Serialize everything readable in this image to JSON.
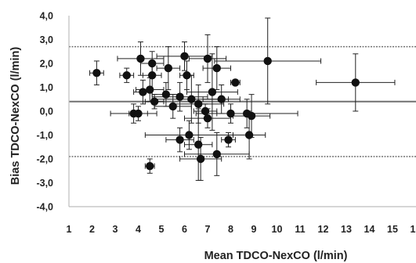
{
  "chart_data": {
    "type": "scatter",
    "title": "",
    "xlabel": "Mean TDCO-NexCO (l/min)",
    "ylabel": "Bias TDCO-NexCO (l/min)",
    "xlim": [
      1,
      16
    ],
    "ylim": [
      -4,
      4
    ],
    "xticks": [
      "1",
      "2",
      "3",
      "4",
      "5",
      "6",
      "7",
      "8",
      "9",
      "10",
      "11",
      "12",
      "13",
      "14",
      "15",
      "16"
    ],
    "yticks": [
      "-4,0",
      "-3,0",
      "-2,0",
      "-1,0",
      "0,0",
      "1,0",
      "2,0",
      "3,0",
      "4,0"
    ],
    "grid": false,
    "reference_lines": {
      "mean_bias": 0.4,
      "upper_limit": 2.7,
      "lower_limit": -1.9
    },
    "points": [
      {
        "x": 2.2,
        "y": 1.6,
        "xerr": 0.3,
        "yerr": 0.5
      },
      {
        "x": 3.5,
        "y": 1.5,
        "xerr": 0.3,
        "yerr": 0.3
      },
      {
        "x": 4.1,
        "y": 2.2,
        "xerr": 1.0,
        "yerr": 0.7
      },
      {
        "x": 4.6,
        "y": 2.0,
        "xerr": 0.5,
        "yerr": 0.5
      },
      {
        "x": 5.3,
        "y": 1.8,
        "xerr": 0.5,
        "yerr": 0.9
      },
      {
        "x": 4.6,
        "y": 1.5,
        "xerr": 0.4,
        "yerr": 0.6
      },
      {
        "x": 6.0,
        "y": 2.3,
        "xerr": 1.2,
        "yerr": 0.6
      },
      {
        "x": 7.0,
        "y": 2.2,
        "xerr": 0.8,
        "yerr": 1.0
      },
      {
        "x": 7.4,
        "y": 1.8,
        "xerr": 0.6,
        "yerr": 0.9
      },
      {
        "x": 6.1,
        "y": 1.5,
        "xerr": 0.3,
        "yerr": 0.6
      },
      {
        "x": 9.6,
        "y": 2.1,
        "xerr": 2.3,
        "yerr": 1.8
      },
      {
        "x": 8.2,
        "y": 1.2,
        "xerr": 0.2,
        "yerr": 0.1
      },
      {
        "x": 13.4,
        "y": 1.2,
        "xerr": 1.7,
        "yerr": 1.2
      },
      {
        "x": 4.5,
        "y": 0.9,
        "xerr": 0.6,
        "yerr": 0.5
      },
      {
        "x": 4.2,
        "y": 0.8,
        "xerr": 0.4,
        "yerr": 0.5
      },
      {
        "x": 5.2,
        "y": 0.7,
        "xerr": 0.6,
        "yerr": 0.5
      },
      {
        "x": 5.8,
        "y": 0.6,
        "xerr": 1.2,
        "yerr": 0.6
      },
      {
        "x": 6.3,
        "y": 0.5,
        "xerr": 1.6,
        "yerr": 1.0
      },
      {
        "x": 6.6,
        "y": 0.3,
        "xerr": 1.1,
        "yerr": 0.8
      },
      {
        "x": 7.2,
        "y": 0.8,
        "xerr": 1.1,
        "yerr": 1.6
      },
      {
        "x": 7.6,
        "y": 0.5,
        "xerr": 0.8,
        "yerr": 0.6
      },
      {
        "x": 4.7,
        "y": 0.4,
        "xerr": 0.4,
        "yerr": 0.3
      },
      {
        "x": 5.5,
        "y": 0.2,
        "xerr": 0.8,
        "yerr": 0.5
      },
      {
        "x": 6.9,
        "y": 0.0,
        "xerr": 0.5,
        "yerr": 0.3
      },
      {
        "x": 3.8,
        "y": -0.1,
        "xerr": 1.0,
        "yerr": 0.4
      },
      {
        "x": 4.0,
        "y": -0.1,
        "xerr": 0.4,
        "yerr": 0.3
      },
      {
        "x": 7.0,
        "y": -0.3,
        "xerr": 1.0,
        "yerr": 0.4
      },
      {
        "x": 8.0,
        "y": -0.1,
        "xerr": 0.6,
        "yerr": 0.4
      },
      {
        "x": 8.7,
        "y": -0.1,
        "xerr": 2.2,
        "yerr": 0.6
      },
      {
        "x": 8.9,
        "y": -0.2,
        "xerr": 0.8,
        "yerr": 0.9
      },
      {
        "x": 8.8,
        "y": -1.0,
        "xerr": 0.7,
        "yerr": 1.0
      },
      {
        "x": 5.8,
        "y": -1.2,
        "xerr": 0.6,
        "yerr": 0.5
      },
      {
        "x": 6.2,
        "y": -1.0,
        "xerr": 1.9,
        "yerr": 0.6
      },
      {
        "x": 7.9,
        "y": -1.2,
        "xerr": 0.3,
        "yerr": 0.3
      },
      {
        "x": 6.6,
        "y": -1.4,
        "xerr": 0.6,
        "yerr": 1.5
      },
      {
        "x": 7.4,
        "y": -1.8,
        "xerr": 1.4,
        "yerr": 0.9
      },
      {
        "x": 6.7,
        "y": -2.0,
        "xerr": 0.9,
        "yerr": 0.9
      },
      {
        "x": 4.5,
        "y": -2.3,
        "xerr": 0.2,
        "yerr": 0.3
      }
    ]
  }
}
